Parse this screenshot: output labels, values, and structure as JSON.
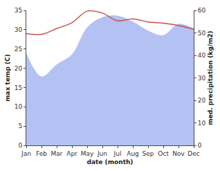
{
  "chart_data": {
    "type": "line",
    "x_label": "date (month)",
    "y_label": "max temp (C)",
    "y2_label": "med. precipitation (kg/m2)",
    "categories": [
      "Jan",
      "Feb",
      "Mar",
      "Apr",
      "May",
      "Jun",
      "Jul",
      "Aug",
      "Sep",
      "Oct",
      "Nov",
      "Dec"
    ],
    "series": [
      {
        "type": "line",
        "color": "#c8504e",
        "values": [
          29.0,
          28.8,
          30.3,
          31.8,
          34.8,
          34.3,
          32.3,
          32.8,
          32.0,
          31.7,
          31.1,
          30.1
        ]
      },
      {
        "type": "area",
        "color": "#b3c2f2",
        "axis": "y2",
        "values": [
          41,
          30.6,
          36,
          40.5,
          52.5,
          57,
          57.6,
          55,
          51,
          49,
          54,
          52
        ]
      }
    ],
    "ylim": [
      0,
      35
    ],
    "yticks": [
      0,
      5,
      10,
      15,
      20,
      25,
      30,
      35
    ],
    "y2lim": [
      0,
      60
    ],
    "y2ticks": [
      0,
      10,
      20,
      30,
      40,
      50,
      60
    ],
    "grid": false
  }
}
